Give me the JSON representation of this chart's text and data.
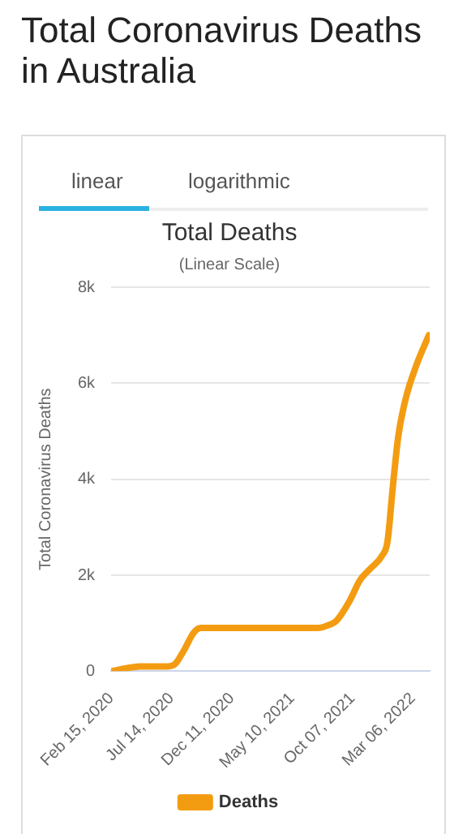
{
  "chart_data": {
    "type": "line",
    "title": "Total Deaths",
    "subtitle": "(Linear Scale)",
    "ylabel": "Total Coronavirus Deaths",
    "annotations": [
      "Total Coronavirus Deaths in Australia",
      "linear",
      "logarithmic"
    ],
    "x": [
      "2020-02-15",
      "2020-04-28",
      "2020-07-05",
      "2020-07-23",
      "2020-08-15",
      "2020-09-07",
      "2020-09-25",
      "2020-11-05",
      "2021-07-13",
      "2021-08-05",
      "2021-08-28",
      "2021-09-29",
      "2021-10-26",
      "2021-11-22",
      "2021-12-19",
      "2022-01-02",
      "2022-01-16",
      "2022-01-29",
      "2022-02-17",
      "2022-03-16",
      "2022-04-15"
    ],
    "series": [
      {
        "name": "Deaths",
        "color": "#f39c12",
        "values": [
          0,
          100,
          100,
          150,
          450,
          800,
          900,
          900,
          900,
          950,
          1050,
          1450,
          1900,
          2150,
          2400,
          2700,
          3900,
          4900,
          5700,
          6400,
          7000
        ]
      }
    ],
    "xlim": [
      "2020-02-15",
      "2022-04-17"
    ],
    "xticks": [
      {
        "value": "2020-02-15",
        "label": "Feb 15, 2020"
      },
      {
        "value": "2020-07-14",
        "label": "Jul 14, 2020"
      },
      {
        "value": "2020-12-11",
        "label": "Dec 11, 2020"
      },
      {
        "value": "2021-05-10",
        "label": "May 10, 2021"
      },
      {
        "value": "2021-10-07",
        "label": "Oct 07, 2021"
      },
      {
        "value": "2022-03-06",
        "label": "Mar 06, 2022"
      }
    ],
    "ylim": [
      0,
      8000
    ],
    "yticks": [
      0,
      {
        "value": 2000,
        "label": "2k"
      },
      {
        "value": 4000,
        "label": "4k"
      },
      {
        "value": 6000,
        "label": "6k"
      },
      {
        "value": 8000,
        "label": "8k"
      }
    ],
    "grid": "y",
    "legend": "bottom",
    "marker": "none",
    "line_style": "solid"
  }
}
